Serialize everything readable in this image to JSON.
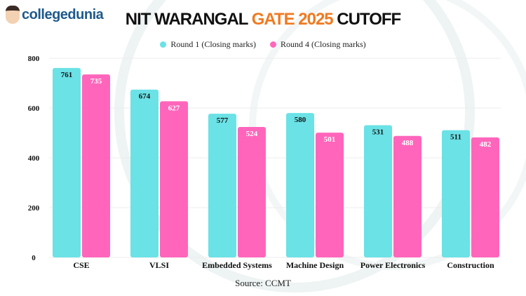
{
  "brand": {
    "logo_text": "collegedunia"
  },
  "title": {
    "part1": "NIT WARANGAL ",
    "part2": "GATE 2025",
    "part3": " CUTOFF"
  },
  "source": "Source: CCMT",
  "colors": {
    "round1": "#6ae2e6",
    "round4": "#ff66bb",
    "accent": "#f07a20"
  },
  "chart_data": {
    "type": "bar",
    "categories": [
      "CSE",
      "VLSI",
      "Embedded Systems",
      "Machine Design",
      "Power Electronics",
      "Construction"
    ],
    "series": [
      {
        "name": "Round 1 (Closing marks)",
        "values": [
          761,
          674,
          577,
          580,
          531,
          511
        ]
      },
      {
        "name": "Round 4 (Closing marks)",
        "values": [
          735,
          627,
          524,
          501,
          488,
          482
        ]
      }
    ],
    "ylim": [
      0,
      800
    ],
    "yticks": [
      0,
      200,
      400,
      600,
      800
    ],
    "grid": true,
    "legend": "top-center",
    "data_labels": true
  }
}
